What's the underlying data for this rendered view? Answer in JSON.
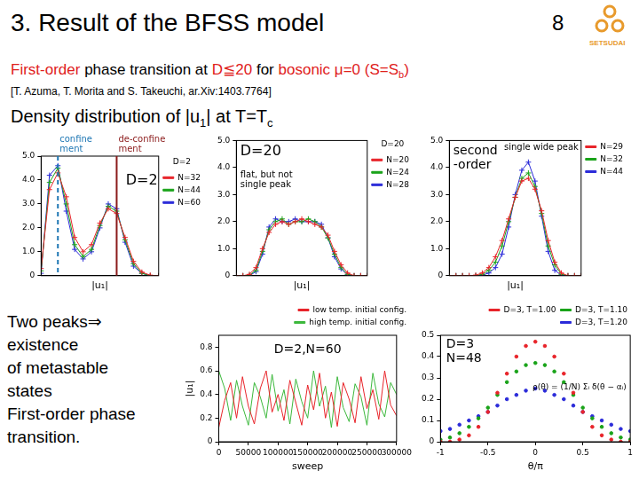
{
  "slide": {
    "title": "3. Result of the BFSS model",
    "page": "8",
    "logo": "SETSUDAI",
    "subtitle": [
      {
        "text": "First-order",
        "color": "#e0201b"
      },
      {
        "text": " phase transition at "
      },
      {
        "text": "D≦20",
        "color": "#e0201b"
      },
      {
        "text": " for "
      },
      {
        "text": "bosonic",
        "color": "#e0201b"
      },
      {
        "text": " μ=0 (S=S",
        "color": "#e0201b"
      },
      {
        "text": "b",
        "color": "#e0201b",
        "sub": true
      },
      {
        "text": ")",
        "color": "#e0201b"
      }
    ],
    "reference": "[T. Azuma, T. Morita and S. Takeuchi, ar.Xiv:1403.7764]",
    "heading": [
      {
        "text": "Density distribution of |u"
      },
      {
        "text": "1",
        "sub": true
      },
      {
        "text": "| at T=T"
      },
      {
        "text": "c",
        "sub": true
      }
    ],
    "conclusion": [
      "Two peaks⇒",
      "existence",
      "of metastable",
      "states",
      "First-order phase",
      "transition."
    ]
  },
  "chart_data": [
    {
      "type": "line",
      "title": "D=2",
      "x_label": "|u₁|",
      "x": [
        0,
        0.05,
        0.1,
        0.15,
        0.2,
        0.25,
        0.3,
        0.35,
        0.4,
        0.45,
        0.5,
        0.55,
        0.6,
        0.65,
        0.7
      ],
      "series": [
        {
          "name": "N=32",
          "color": "#e8242a",
          "values": [
            0.3,
            3.6,
            4.3,
            3.3,
            1.6,
            1.0,
            1.3,
            2.2,
            2.8,
            2.6,
            1.6,
            0.6,
            0.15,
            0.02,
            0
          ]
        },
        {
          "name": "N=44",
          "color": "#19a319",
          "values": [
            0.2,
            3.9,
            4.5,
            3.0,
            1.3,
            0.8,
            1.1,
            2.1,
            2.9,
            2.7,
            1.5,
            0.5,
            0.1,
            0,
            0
          ]
        },
        {
          "name": "N=60",
          "color": "#2b2bd9",
          "values": [
            0.1,
            4.2,
            4.6,
            2.7,
            1.1,
            0.7,
            1.0,
            2.0,
            3.0,
            2.8,
            1.4,
            0.4,
            0.1,
            0,
            0
          ]
        }
      ],
      "xlim": [
        0,
        0.7
      ],
      "ylim": [
        0,
        5
      ],
      "yticks": [
        0,
        {
          "value": 1,
          "label": "1.0"
        },
        {
          "value": 2,
          "label": "2.0"
        },
        {
          "value": 3,
          "label": "3.0"
        },
        {
          "value": 4,
          "label": "4.0"
        },
        {
          "value": 5,
          "label": "5.0"
        }
      ],
      "tick_labels": "y",
      "grid": false,
      "legend": "upper right",
      "marker": "plus",
      "line_style": "solid",
      "vlines": [
        {
          "x": 0.1,
          "label": [
            "confine",
            "ment"
          ],
          "color": "#1f77b4",
          "line_style": "dashed"
        },
        {
          "x": 0.45,
          "label": [
            "de-confine",
            "ment"
          ],
          "color": "#8b1a1a",
          "line_style": "solid"
        }
      ],
      "notes": [
        [
          "D=2"
        ]
      ]
    },
    {
      "type": "line",
      "title": "D=20",
      "x_label": "|u₁|",
      "x": [
        0,
        0.05,
        0.1,
        0.15,
        0.2,
        0.25,
        0.3,
        0.35,
        0.4,
        0.45,
        0.5,
        0.55,
        0.6,
        0.65,
        0.7,
        0.75,
        0.8,
        0.85,
        0.9,
        0.95,
        1
      ],
      "series": [
        {
          "name": "N=20",
          "color": "#e8242a",
          "values": [
            0,
            0,
            0.05,
            0.3,
            1.0,
            1.6,
            1.9,
            2.0,
            1.9,
            2.0,
            2.1,
            2.0,
            1.9,
            1.8,
            1.5,
            0.9,
            0.4,
            0.1,
            0,
            0,
            0
          ]
        },
        {
          "name": "N=24",
          "color": "#19a319",
          "values": [
            0,
            0,
            0.02,
            0.2,
            0.9,
            1.7,
            2.0,
            2.1,
            1.9,
            2.0,
            2.0,
            2.1,
            2.0,
            1.8,
            1.4,
            0.8,
            0.3,
            0.05,
            0,
            0,
            0
          ]
        },
        {
          "name": "N=28",
          "color": "#2b2bd9",
          "values": [
            0,
            0,
            0,
            0.15,
            0.8,
            1.8,
            2.1,
            2.0,
            2.0,
            2.1,
            2.0,
            2.0,
            2.0,
            1.9,
            1.4,
            0.7,
            0.25,
            0.03,
            0,
            0,
            0
          ]
        }
      ],
      "xlim": [
        0,
        1
      ],
      "ylim": [
        0,
        5
      ],
      "yticks": [
        0,
        {
          "value": 1,
          "label": "1.0"
        },
        {
          "value": 2,
          "label": "2.0"
        },
        {
          "value": 3,
          "label": "3.0"
        },
        {
          "value": 4,
          "label": "4.0"
        },
        {
          "value": 5,
          "label": "5.0"
        }
      ],
      "tick_labels": "y",
      "grid": false,
      "legend": "upper right",
      "marker": "plus",
      "line_style": "solid",
      "notes": [
        [
          "D=20"
        ],
        [
          "flat, but not",
          "single peak"
        ]
      ]
    },
    {
      "type": "line",
      "x_label": "|u₁|",
      "x": [
        0,
        0.05,
        0.1,
        0.15,
        0.2,
        0.25,
        0.3,
        0.35,
        0.4,
        0.45,
        0.5,
        0.55,
        0.6,
        0.65,
        0.7,
        0.75,
        0.8,
        0.85,
        0.9,
        0.95,
        1
      ],
      "series": [
        {
          "name": "N=29",
          "color": "#e8242a",
          "values": [
            0,
            0,
            0,
            0,
            0.02,
            0.1,
            0.3,
            0.7,
            1.3,
            2.1,
            2.9,
            3.5,
            3.6,
            3.2,
            2.4,
            1.3,
            0.5,
            0.1,
            0,
            0,
            0
          ]
        },
        {
          "name": "N=32",
          "color": "#19a319",
          "values": [
            0,
            0,
            0,
            0,
            0,
            0.05,
            0.2,
            0.5,
            1.1,
            2.0,
            2.9,
            3.6,
            3.8,
            3.3,
            2.3,
            1.1,
            0.4,
            0.05,
            0,
            0,
            0
          ]
        },
        {
          "name": "N=44",
          "color": "#2b2bd9",
          "values": [
            0,
            0,
            0,
            0,
            0,
            0.02,
            0.1,
            0.3,
            0.8,
            1.8,
            3.0,
            3.9,
            4.2,
            3.5,
            2.2,
            0.9,
            0.2,
            0.02,
            0,
            0,
            0
          ]
        }
      ],
      "xlim": [
        0,
        1
      ],
      "ylim": [
        0,
        5
      ],
      "yticks": [
        0,
        {
          "value": 1,
          "label": "1.0"
        },
        {
          "value": 2,
          "label": "2.0"
        },
        {
          "value": 3,
          "label": "3.0"
        },
        {
          "value": 4,
          "label": "4.0"
        },
        {
          "value": 5,
          "label": "5.0"
        }
      ],
      "tick_labels": "y",
      "grid": false,
      "legend": "upper right",
      "marker": "plus",
      "line_style": "solid",
      "notes": [
        [
          "second",
          "-order"
        ],
        [
          "single wide peak"
        ]
      ]
    },
    {
      "type": "line",
      "x_label": "sweep",
      "y_label": "|u₁|",
      "x": [
        0,
        10000,
        20000,
        30000,
        40000,
        50000,
        60000,
        70000,
        80000,
        90000,
        100000,
        110000,
        120000,
        130000,
        140000,
        150000,
        160000,
        170000,
        180000,
        190000,
        200000,
        210000,
        220000,
        230000,
        240000,
        250000,
        260000,
        270000,
        280000,
        290000,
        300000
      ],
      "series": [
        {
          "name": "low temp. initial config.",
          "color": "#e8242a",
          "values": [
            0.12,
            0.35,
            0.5,
            0.2,
            0.55,
            0.3,
            0.15,
            0.45,
            0.6,
            0.25,
            0.4,
            0.18,
            0.52,
            0.33,
            0.14,
            0.48,
            0.27,
            0.58,
            0.2,
            0.42,
            0.13,
            0.5,
            0.36,
            0.16,
            0.55,
            0.28,
            0.44,
            0.19,
            0.6,
            0.31,
            0.22
          ]
        },
        {
          "name": "high temp. initial config.",
          "color": "#3cb83c",
          "values": [
            0.6,
            0.45,
            0.18,
            0.52,
            0.3,
            0.14,
            0.5,
            0.38,
            0.2,
            0.57,
            0.26,
            0.44,
            0.15,
            0.53,
            0.34,
            0.2,
            0.6,
            0.3,
            0.47,
            0.12,
            0.55,
            0.29,
            0.17,
            0.49,
            0.38,
            0.14,
            0.58,
            0.32,
            0.21,
            0.5,
            0.4
          ]
        }
      ],
      "xlim": [
        0,
        300000
      ],
      "ylim": [
        0,
        0.9
      ],
      "xticks": [
        0,
        50000,
        100000,
        150000,
        200000,
        250000,
        300000
      ],
      "yticks": [
        0,
        0.2,
        0.4,
        0.6,
        0.8
      ],
      "grid": false,
      "legend": "upper right",
      "marker": "none",
      "line_style": "solid",
      "notes": [
        [
          "D=2,N=60"
        ]
      ]
    },
    {
      "type": "line",
      "x_label": "θ/π",
      "x": [
        -1,
        -0.9,
        -0.8,
        -0.7,
        -0.6,
        -0.5,
        -0.4,
        -0.3,
        -0.2,
        -0.1,
        0,
        0.1,
        0.2,
        0.3,
        0.4,
        0.5,
        0.6,
        0.7,
        0.8,
        0.9,
        1
      ],
      "series": [
        {
          "name": "D=3, T=1.00",
          "color": "#e8242a",
          "values": [
            0,
            0,
            0.01,
            0.03,
            0.07,
            0.14,
            0.23,
            0.32,
            0.4,
            0.45,
            0.47,
            0.45,
            0.4,
            0.32,
            0.23,
            0.14,
            0.07,
            0.03,
            0.01,
            0,
            0
          ]
        },
        {
          "name": "D=3, T=1.10",
          "color": "#19a319",
          "values": [
            0.01,
            0.02,
            0.04,
            0.07,
            0.11,
            0.16,
            0.22,
            0.28,
            0.33,
            0.36,
            0.37,
            0.36,
            0.33,
            0.28,
            0.22,
            0.16,
            0.11,
            0.07,
            0.04,
            0.02,
            0.01
          ]
        },
        {
          "name": "D=3, T=1.20",
          "color": "#2b2bd9",
          "values": [
            0.05,
            0.06,
            0.08,
            0.1,
            0.12,
            0.14,
            0.17,
            0.2,
            0.22,
            0.24,
            0.25,
            0.24,
            0.22,
            0.2,
            0.17,
            0.14,
            0.12,
            0.1,
            0.08,
            0.06,
            0.05
          ]
        }
      ],
      "xlim": [
        -1,
        1
      ],
      "ylim": [
        0,
        0.5
      ],
      "xticks": [
        -1,
        -0.5,
        0,
        0.5,
        1
      ],
      "yticks": [
        0,
        0.1,
        0.2,
        0.3,
        0.4,
        0.5
      ],
      "grid": false,
      "legend": "upper right",
      "marker": "circle",
      "line_style": "none",
      "notes": [
        [
          "D=3",
          "N=48"
        ],
        [
          "ρ(θ) = (1/N) Σᵢ δ(θ − αᵢ)"
        ]
      ]
    }
  ]
}
